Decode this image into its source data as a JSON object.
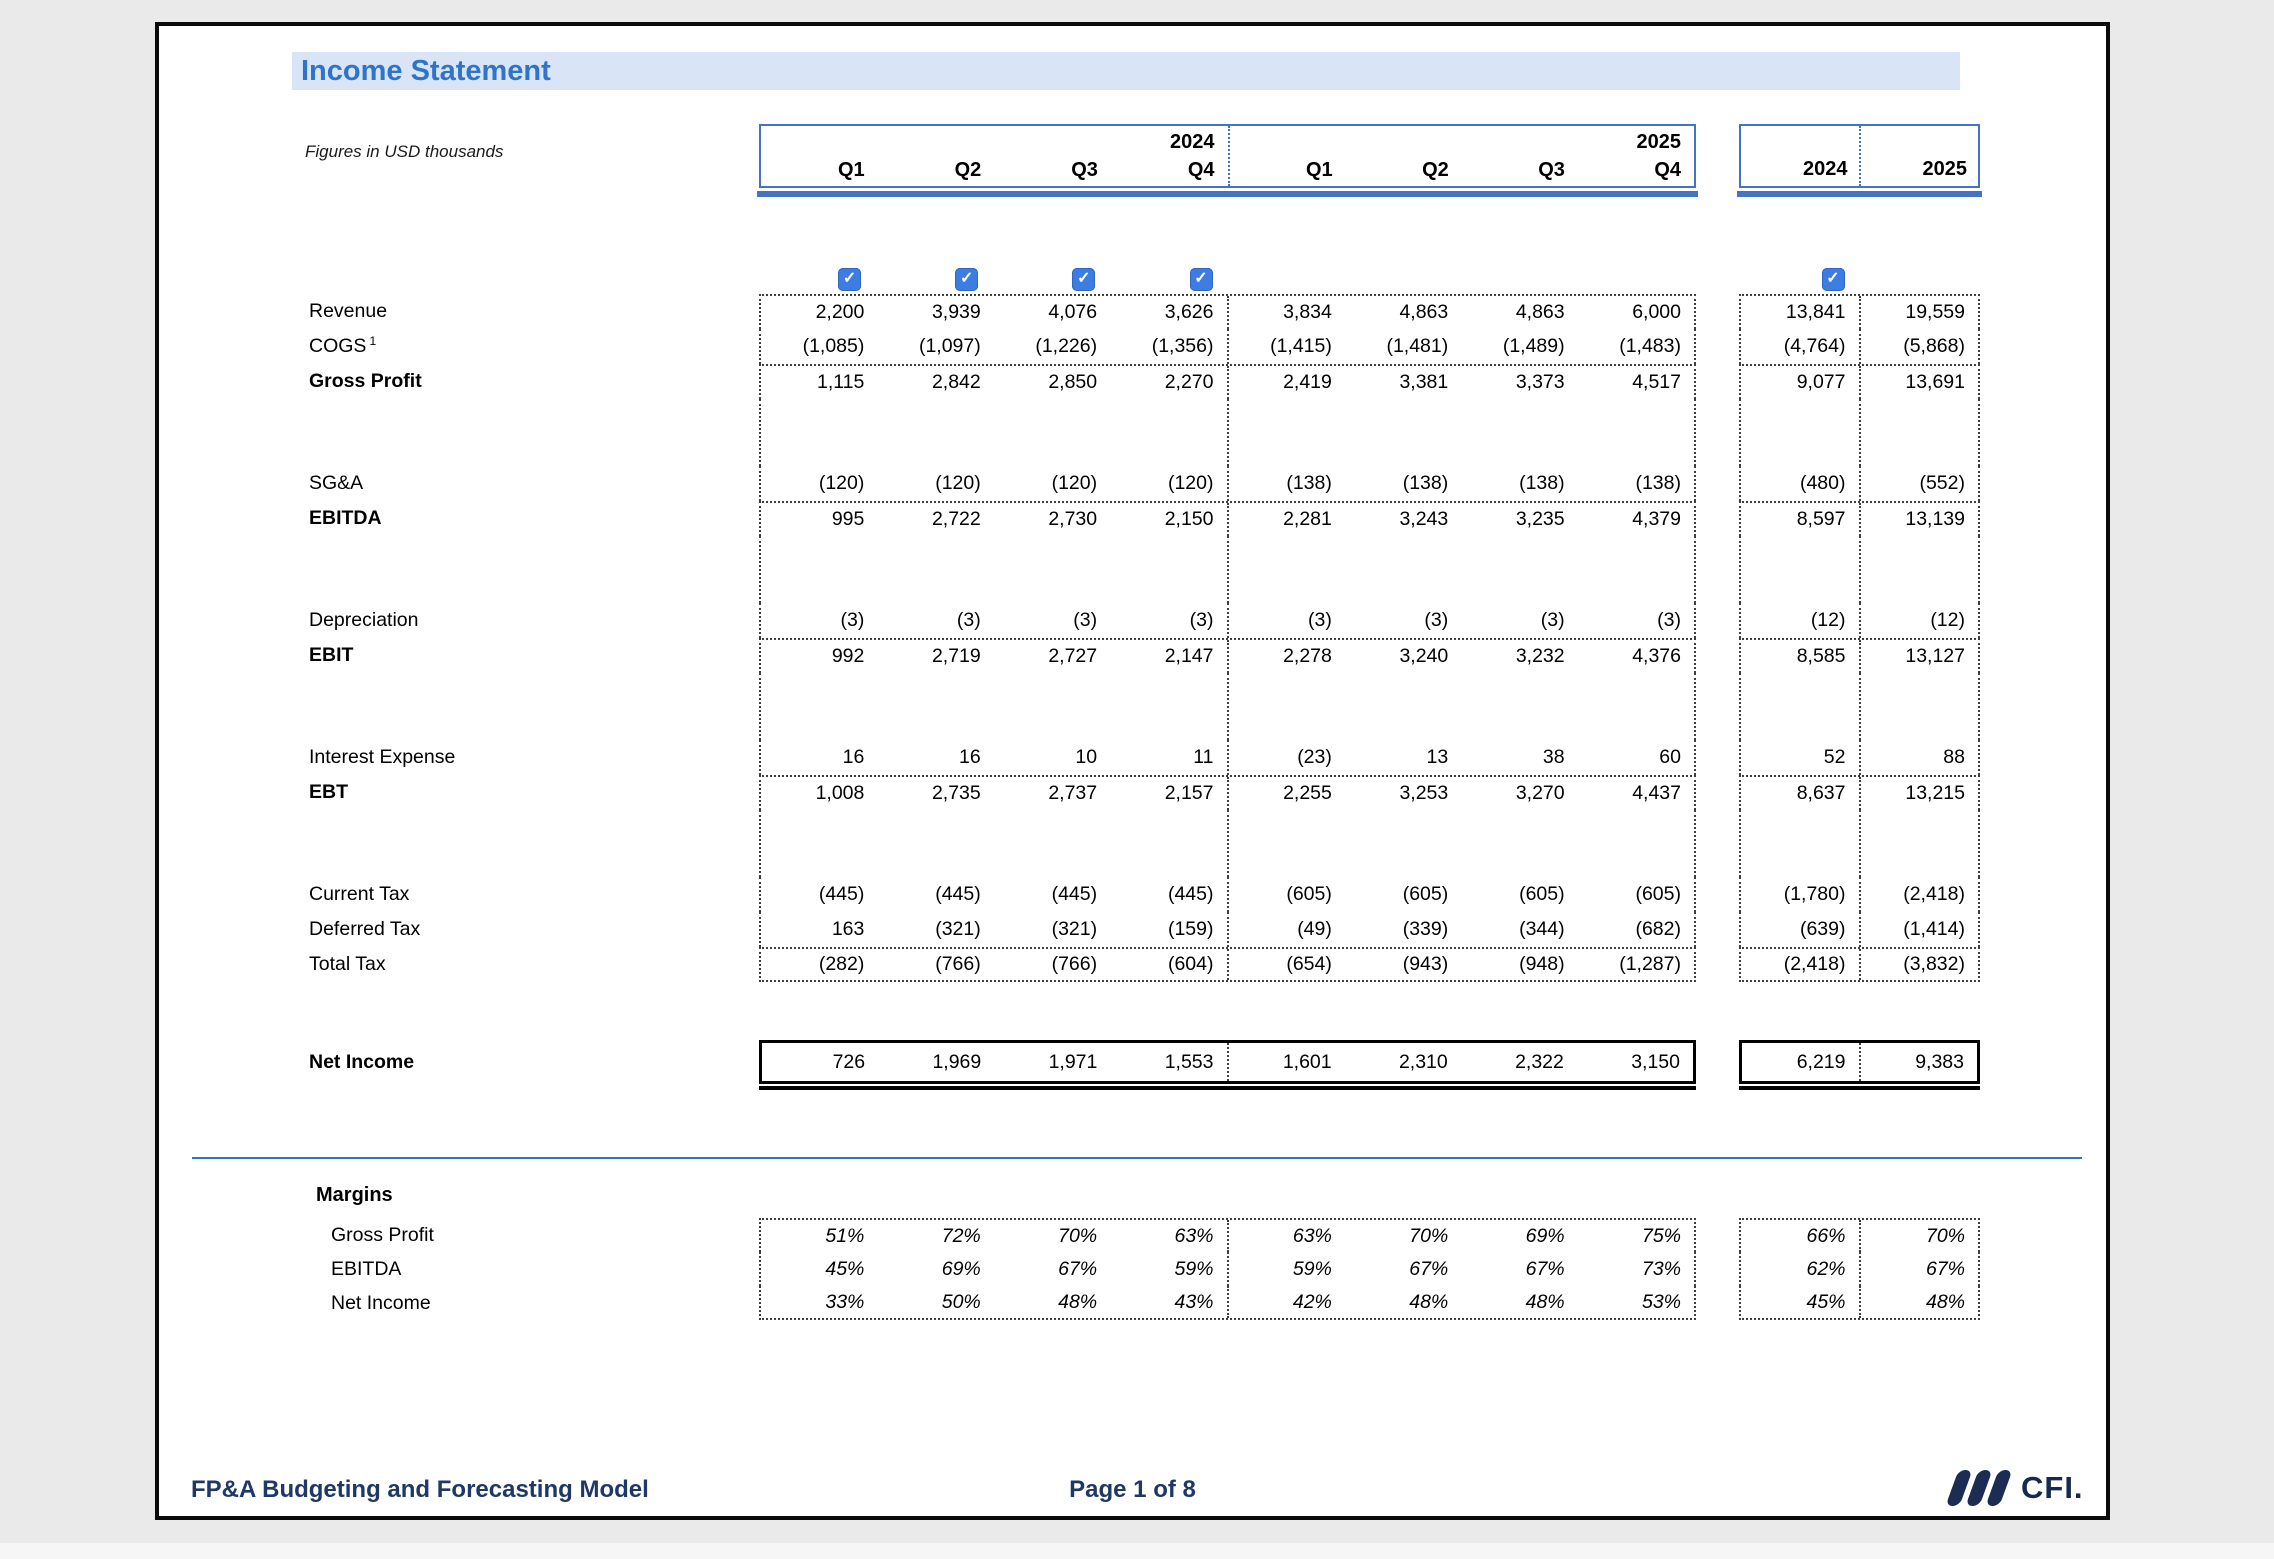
{
  "title": "Income Statement",
  "note": "Figures in USD thousands",
  "header": {
    "year_groups": [
      "2024",
      "2025"
    ],
    "quarter_labels": [
      "Q1",
      "Q2",
      "Q3",
      "Q4",
      "Q1",
      "Q2",
      "Q3",
      "Q4"
    ],
    "annual_labels": [
      "2024",
      "2025"
    ]
  },
  "checkboxes": {
    "quarters": [
      true,
      true,
      true,
      true,
      false,
      false,
      false,
      false
    ],
    "annual": [
      true,
      false
    ]
  },
  "rows": [
    {
      "label": "Revenue",
      "q": [
        "2,200",
        "3,939",
        "4,076",
        "3,626",
        "3,834",
        "4,863",
        "4,863",
        "6,000"
      ],
      "a": [
        "13,841",
        "19,559"
      ]
    },
    {
      "label": "COGS",
      "sup": "1",
      "q": [
        "(1,085)",
        "(1,097)",
        "(1,226)",
        "(1,356)",
        "(1,415)",
        "(1,481)",
        "(1,489)",
        "(1,483)"
      ],
      "a": [
        "(4,764)",
        "(5,868)"
      ]
    },
    {
      "label": "Gross Profit",
      "bold": true,
      "sep": true,
      "q": [
        "1,115",
        "2,842",
        "2,850",
        "2,270",
        "2,419",
        "3,381",
        "3,373",
        "4,517"
      ],
      "a": [
        "9,077",
        "13,691"
      ]
    },
    {
      "blank": true
    },
    {
      "label": "SG&A",
      "q": [
        "(120)",
        "(120)",
        "(120)",
        "(120)",
        "(138)",
        "(138)",
        "(138)",
        "(138)"
      ],
      "a": [
        "(480)",
        "(552)"
      ]
    },
    {
      "label": "EBITDA",
      "bold": true,
      "sep": true,
      "q": [
        "995",
        "2,722",
        "2,730",
        "2,150",
        "2,281",
        "3,243",
        "3,235",
        "4,379"
      ],
      "a": [
        "8,597",
        "13,139"
      ]
    },
    {
      "blank": true
    },
    {
      "label": "Depreciation",
      "q": [
        "(3)",
        "(3)",
        "(3)",
        "(3)",
        "(3)",
        "(3)",
        "(3)",
        "(3)"
      ],
      "a": [
        "(12)",
        "(12)"
      ]
    },
    {
      "label": "EBIT",
      "bold": true,
      "sep": true,
      "q": [
        "992",
        "2,719",
        "2,727",
        "2,147",
        "2,278",
        "3,240",
        "3,232",
        "4,376"
      ],
      "a": [
        "8,585",
        "13,127"
      ]
    },
    {
      "blank": true
    },
    {
      "label": "Interest Expense",
      "q": [
        "16",
        "16",
        "10",
        "11",
        "(23)",
        "13",
        "38",
        "60"
      ],
      "a": [
        "52",
        "88"
      ]
    },
    {
      "label": "EBT",
      "bold": true,
      "sep": true,
      "q": [
        "1,008",
        "2,735",
        "2,737",
        "2,157",
        "2,255",
        "3,253",
        "3,270",
        "4,437"
      ],
      "a": [
        "8,637",
        "13,215"
      ]
    },
    {
      "blank": true
    },
    {
      "label": "Current Tax",
      "q": [
        "(445)",
        "(445)",
        "(445)",
        "(445)",
        "(605)",
        "(605)",
        "(605)",
        "(605)"
      ],
      "a": [
        "(1,780)",
        "(2,418)"
      ]
    },
    {
      "label": "Deferred Tax",
      "q": [
        "163",
        "(321)",
        "(321)",
        "(159)",
        "(49)",
        "(339)",
        "(344)",
        "(682)"
      ],
      "a": [
        "(639)",
        "(1,414)"
      ]
    },
    {
      "label": "Total Tax",
      "sep": true,
      "q": [
        "(282)",
        "(766)",
        "(766)",
        "(604)",
        "(654)",
        "(943)",
        "(948)",
        "(1,287)"
      ],
      "a": [
        "(2,418)",
        "(3,832)"
      ]
    }
  ],
  "net_income": {
    "label": "Net Income",
    "q": [
      "726",
      "1,969",
      "1,971",
      "1,553",
      "1,601",
      "2,310",
      "2,322",
      "3,150"
    ],
    "a": [
      "6,219",
      "9,383"
    ]
  },
  "margins": {
    "title": "Margins",
    "rows": [
      {
        "label": "Gross Profit",
        "q": [
          "51%",
          "72%",
          "70%",
          "63%",
          "63%",
          "70%",
          "69%",
          "75%"
        ],
        "a": [
          "66%",
          "70%"
        ]
      },
      {
        "label": "EBITDA",
        "q": [
          "45%",
          "69%",
          "67%",
          "59%",
          "59%",
          "67%",
          "67%",
          "73%"
        ],
        "a": [
          "62%",
          "67%"
        ]
      },
      {
        "label": "Net Income",
        "q": [
          "33%",
          "50%",
          "48%",
          "43%",
          "42%",
          "48%",
          "48%",
          "53%"
        ],
        "a": [
          "45%",
          "48%"
        ]
      }
    ]
  },
  "footer": {
    "left": "FP&A Budgeting and Forecasting Model",
    "center": "Page 1 of 8",
    "logo": "CFI."
  },
  "colors": {
    "accent_blue": "#2e74c8",
    "band_blue": "#d9e4f6",
    "header_border": "#4472c4",
    "checkbox_blue": "#3d7ce0",
    "footer_navy": "#1f3864",
    "logo_navy": "#1b2d52"
  }
}
